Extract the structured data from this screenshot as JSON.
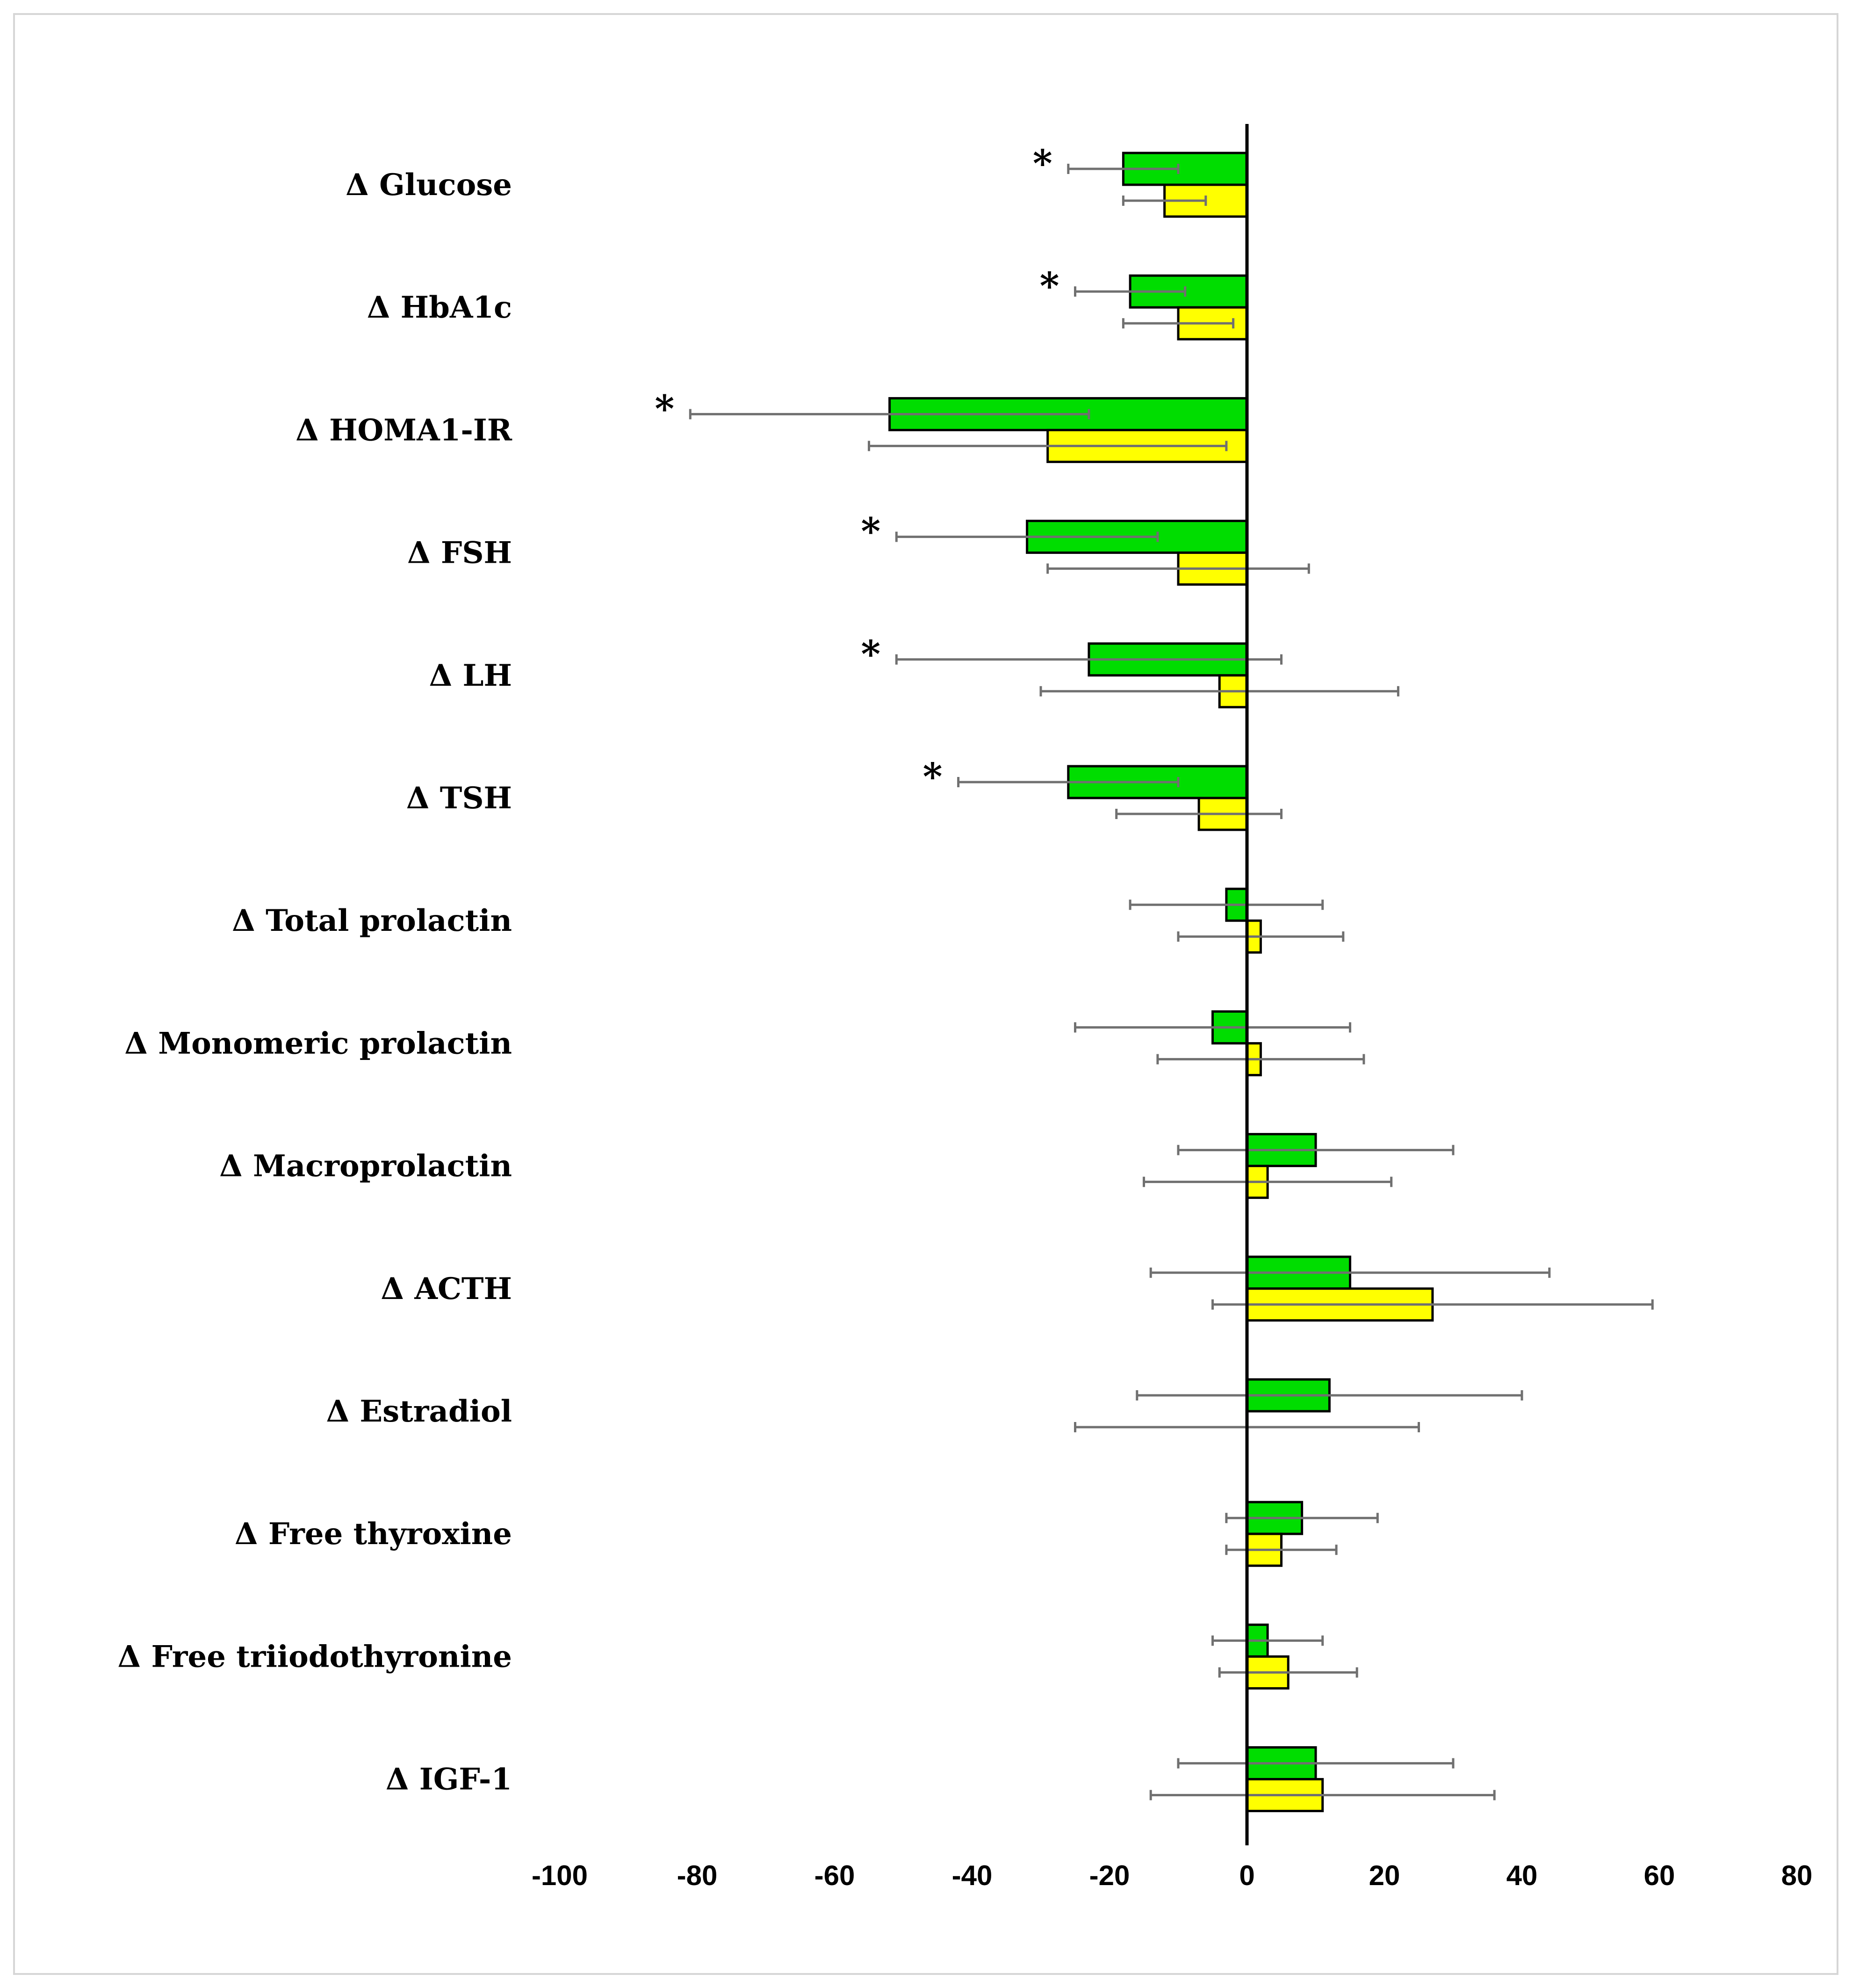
{
  "chart_data": {
    "type": "bar",
    "orientation": "horizontal",
    "title": "",
    "xlabel": "",
    "ylabel": "",
    "xlim": [
      -100,
      80
    ],
    "x_ticks": [
      -100,
      -80,
      -60,
      -40,
      -20,
      0,
      20,
      40,
      60,
      80
    ],
    "grid": false,
    "legend": "none",
    "categories": [
      "Δ Glucose",
      "Δ HbA1c",
      "Δ HOMA1-IR",
      "Δ FSH",
      "Δ LH",
      "Δ TSH",
      "Δ Total prolactin",
      "Δ Monomeric prolactin",
      "Δ Macroprolactin",
      "Δ ACTH",
      "Δ Estradiol",
      "Δ Free thyroxine",
      "Δ Free triiodothyronine",
      "Δ IGF-1"
    ],
    "series": [
      {
        "color": "#00dd00",
        "values": [
          -18,
          -17,
          -52,
          -32,
          -23,
          -26,
          -3,
          -5,
          10,
          15,
          12,
          8,
          3,
          10
        ],
        "error_low": [
          -26,
          -25,
          -81,
          -51,
          -51,
          -42,
          -17,
          -25,
          -10,
          -14,
          -16,
          -3,
          -5,
          -10
        ],
        "error_high": [
          -10,
          -9,
          -23,
          -13,
          5,
          -10,
          11,
          15,
          30,
          44,
          40,
          19,
          11,
          30
        ]
      },
      {
        "color": "#ffff00",
        "values": [
          -12,
          -10,
          -29,
          -10,
          -4,
          -7,
          2,
          2,
          3,
          27,
          0,
          5,
          6,
          11
        ],
        "error_low": [
          -18,
          -18,
          -55,
          -29,
          -30,
          -19,
          -10,
          -13,
          -15,
          -5,
          -25,
          -3,
          -4,
          -14
        ],
        "error_high": [
          -6,
          -2,
          -3,
          9,
          22,
          5,
          14,
          17,
          21,
          59,
          25,
          13,
          16,
          36
        ]
      }
    ],
    "significance_marker": "*",
    "significant": [
      true,
      true,
      true,
      true,
      true,
      true,
      false,
      false,
      false,
      false,
      false,
      false,
      false,
      false
    ]
  }
}
